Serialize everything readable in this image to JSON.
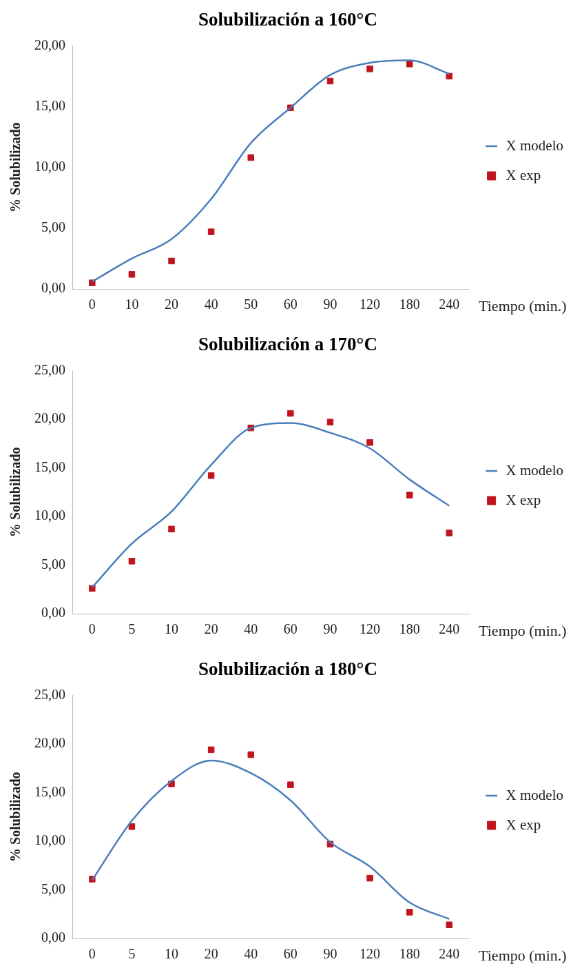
{
  "chart_data": [
    {
      "type": "line",
      "title": "Solubilización a 160°C",
      "xlabel": "Tiempo (min.)",
      "ylabel": "% Solubilizado",
      "categories": [
        "0",
        "10",
        "20",
        "40",
        "50",
        "60",
        "90",
        "120",
        "180",
        "240"
      ],
      "ylim": [
        0,
        20
      ],
      "yticks": [
        {
          "value": 0,
          "label": "0,00"
        },
        {
          "value": 5,
          "label": "5,00"
        },
        {
          "value": 10,
          "label": "10,00"
        },
        {
          "value": 15,
          "label": "15,00"
        },
        {
          "value": 20,
          "label": "20,00"
        }
      ],
      "grid": false,
      "legend": "right",
      "series": [
        {
          "name": "X modelo",
          "type": "line",
          "marker": "none",
          "color": "#4a7ebb",
          "values": [
            0.6,
            2.5,
            4.1,
            7.4,
            12.0,
            14.9,
            17.6,
            18.6,
            18.8,
            17.7
          ]
        },
        {
          "name": "X exp",
          "type": "scatter",
          "marker": "square",
          "color": "#c0141e",
          "values": [
            0.5,
            1.2,
            2.3,
            4.7,
            10.8,
            14.9,
            17.1,
            18.1,
            18.5,
            17.5
          ]
        }
      ]
    },
    {
      "type": "line",
      "title": "Solubilización a 170°C",
      "xlabel": "Tiempo (min.)",
      "ylabel": "% Solubilizado",
      "categories": [
        "0",
        "5",
        "10",
        "20",
        "40",
        "60",
        "90",
        "120",
        "180",
        "240"
      ],
      "ylim": [
        0,
        25
      ],
      "yticks": [
        {
          "value": 0,
          "label": "0,00"
        },
        {
          "value": 5,
          "label": "5,00"
        },
        {
          "value": 10,
          "label": "10,00"
        },
        {
          "value": 15,
          "label": "15,00"
        },
        {
          "value": 20,
          "label": "20,00"
        },
        {
          "value": 25,
          "label": "25,00"
        }
      ],
      "grid": false,
      "legend": "right",
      "series": [
        {
          "name": "X modelo",
          "type": "line",
          "marker": "none",
          "color": "#4a7ebb",
          "values": [
            2.7,
            7.2,
            10.5,
            15.3,
            19.1,
            19.6,
            18.6,
            17.0,
            13.8,
            11.1
          ]
        },
        {
          "name": "X exp",
          "type": "scatter",
          "marker": "square",
          "color": "#c0141e",
          "values": [
            2.6,
            5.4,
            8.7,
            14.2,
            19.1,
            20.6,
            19.7,
            17.6,
            12.2,
            8.3
          ]
        }
      ]
    },
    {
      "type": "line",
      "title": "Solubilización a 180°C",
      "xlabel": "Tiempo (min.)",
      "ylabel": "% Solubilizado",
      "categories": [
        "0",
        "5",
        "10",
        "20",
        "40",
        "60",
        "90",
        "120",
        "180",
        "240"
      ],
      "ylim": [
        0,
        25
      ],
      "yticks": [
        {
          "value": 0,
          "label": "0,00"
        },
        {
          "value": 5,
          "label": "5,00"
        },
        {
          "value": 10,
          "label": "10,00"
        },
        {
          "value": 15,
          "label": "15,00"
        },
        {
          "value": 20,
          "label": "20,00"
        },
        {
          "value": 25,
          "label": "25,00"
        }
      ],
      "grid": false,
      "legend": "right",
      "series": [
        {
          "name": "X modelo",
          "type": "line",
          "marker": "none",
          "color": "#4a7ebb",
          "values": [
            6.0,
            12.1,
            16.2,
            18.3,
            17.0,
            14.2,
            9.9,
            7.4,
            3.7,
            2.0
          ]
        },
        {
          "name": "X exp",
          "type": "scatter",
          "marker": "square",
          "color": "#c0141e",
          "values": [
            6.1,
            11.5,
            15.9,
            19.4,
            18.9,
            15.8,
            9.7,
            6.2,
            2.7,
            1.4
          ]
        }
      ]
    }
  ]
}
